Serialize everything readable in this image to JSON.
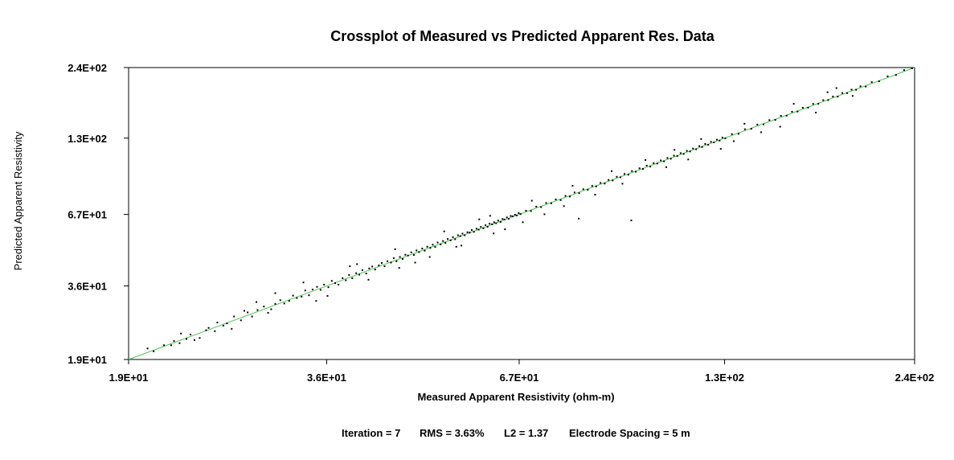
{
  "chart_data": {
    "type": "scatter",
    "title": "Crossplot of Measured vs Predicted Apparent Res. Data",
    "xlabel": "Measured Apparent Resistivity (ohm-m)",
    "ylabel": "Predicted Apparent Resistivity",
    "x_scale": "log",
    "y_scale": "log",
    "xlim": [
      19,
      240
    ],
    "ylim": [
      19,
      240
    ],
    "x_ticks": [
      "1.9E+01",
      "3.6E+01",
      "6.7E+01",
      "1.3E+02",
      "2.4E+02"
    ],
    "y_ticks": [
      "2.4E+02",
      "1.3E+02",
      "6.7E+01",
      "3.6E+01",
      "1.9E+01"
    ],
    "tick_values": [
      19,
      36,
      67,
      130,
      240
    ],
    "reference_line": {
      "from": [
        19,
        19
      ],
      "to": [
        240,
        240
      ],
      "color": "#4cc44c"
    },
    "point_color": "#000000",
    "grid": false,
    "series": [
      {
        "values": [
          [
            20.2,
            20.9
          ],
          [
            20.6,
            20.4
          ],
          [
            21.3,
            21.5
          ],
          [
            21.8,
            21.5
          ],
          [
            22.0,
            22.3
          ],
          [
            22.4,
            21.9
          ],
          [
            22.9,
            22.7
          ],
          [
            23.2,
            23.6
          ],
          [
            23.5,
            22.5
          ],
          [
            24.4,
            24.5
          ],
          [
            24.6,
            25.0
          ],
          [
            25.1,
            24.3
          ],
          [
            25.3,
            26.2
          ],
          [
            26.1,
            26.0
          ],
          [
            26.7,
            27.6
          ],
          [
            27.3,
            26.7
          ],
          [
            27.9,
            28.6
          ],
          [
            28.3,
            27.6
          ],
          [
            28.8,
            29.2
          ],
          [
            29.4,
            30.1
          ],
          [
            30.1,
            29.4
          ],
          [
            30.5,
            30.8
          ],
          [
            31.0,
            31.8
          ],
          [
            31.4,
            30.9
          ],
          [
            31.9,
            31.6
          ],
          [
            32.3,
            33.1
          ],
          [
            32.7,
            32.4
          ],
          [
            33.2,
            32.8
          ],
          [
            33.6,
            34.6
          ],
          [
            34.0,
            33.2
          ],
          [
            34.4,
            34.9
          ],
          [
            34.9,
            35.7
          ],
          [
            35.3,
            34.8
          ],
          [
            35.7,
            36.4
          ],
          [
            36.2,
            35.6
          ],
          [
            36.6,
            37.6
          ],
          [
            37.0,
            36.9
          ],
          [
            37.4,
            36.4
          ],
          [
            37.9,
            38.5
          ],
          [
            38.3,
            37.8
          ],
          [
            38.7,
            39.6
          ],
          [
            39.1,
            38.5
          ],
          [
            39.6,
            40.2
          ],
          [
            40.0,
            39.7
          ],
          [
            40.4,
            41.3
          ],
          [
            40.9,
            40.1
          ],
          [
            41.3,
            41.9
          ],
          [
            41.7,
            42.6
          ],
          [
            42.1,
            41.5
          ],
          [
            42.6,
            43.0
          ],
          [
            43.0,
            43.9
          ],
          [
            43.4,
            42.7
          ],
          [
            43.8,
            44.6
          ],
          [
            44.3,
            44.1
          ],
          [
            44.7,
            45.8
          ],
          [
            45.1,
            44.6
          ],
          [
            45.6,
            46.3
          ],
          [
            46.0,
            45.5
          ],
          [
            46.4,
            47.2
          ],
          [
            46.8,
            46.9
          ],
          [
            47.3,
            48.2
          ],
          [
            47.7,
            47.1
          ],
          [
            48.1,
            49.0
          ],
          [
            48.5,
            48.3
          ],
          [
            49.0,
            49.8
          ],
          [
            49.4,
            48.9
          ],
          [
            49.8,
            50.6
          ],
          [
            50.3,
            50.1
          ],
          [
            50.7,
            51.5
          ],
          [
            51.1,
            50.5
          ],
          [
            51.5,
            52.5
          ],
          [
            52.0,
            51.6
          ],
          [
            52.4,
            53.2
          ],
          [
            52.8,
            52.3
          ],
          [
            53.2,
            54.1
          ],
          [
            53.7,
            53.5
          ],
          [
            54.1,
            55.0
          ],
          [
            54.5,
            54.0
          ],
          [
            55.0,
            55.9
          ],
          [
            55.4,
            55.5
          ],
          [
            55.8,
            56.7
          ],
          [
            56.2,
            55.9
          ],
          [
            56.7,
            57.4
          ],
          [
            57.1,
            57.2
          ],
          [
            57.5,
            58.5
          ],
          [
            57.9,
            57.6
          ],
          [
            58.4,
            59.2
          ],
          [
            58.8,
            58.7
          ],
          [
            59.2,
            60.1
          ],
          [
            59.7,
            59.4
          ],
          [
            60.1,
            61.0
          ],
          [
            60.5,
            60.2
          ],
          [
            60.9,
            61.8
          ],
          [
            61.4,
            61.5
          ],
          [
            61.8,
            62.6
          ],
          [
            62.2,
            62.1
          ],
          [
            62.6,
            63.5
          ],
          [
            63.1,
            62.8
          ],
          [
            63.5,
            64.4
          ],
          [
            63.9,
            64.1
          ],
          [
            64.4,
            65.3
          ],
          [
            64.8,
            64.5
          ],
          [
            65.2,
            66.1
          ],
          [
            65.6,
            65.9
          ],
          [
            66.1,
            66.8
          ],
          [
            66.5,
            66.4
          ],
          [
            66.9,
            67.8
          ],
          [
            67.3,
            67.2
          ],
          [
            68.5,
            69.2
          ],
          [
            69.6,
            69.0
          ],
          [
            70.8,
            71.7
          ],
          [
            71.9,
            71.4
          ],
          [
            73.1,
            74.0
          ],
          [
            74.3,
            73.8
          ],
          [
            75.4,
            76.3
          ],
          [
            76.6,
            75.9
          ],
          [
            77.8,
            78.7
          ],
          [
            78.9,
            78.3
          ],
          [
            80.1,
            81.1
          ],
          [
            81.3,
            80.6
          ],
          [
            82.4,
            83.4
          ],
          [
            83.6,
            83.0
          ],
          [
            84.8,
            85.8
          ],
          [
            85.9,
            85.5
          ],
          [
            87.1,
            88.1
          ],
          [
            88.3,
            87.6
          ],
          [
            89.4,
            90.4
          ],
          [
            90.6,
            90.0
          ],
          [
            91.8,
            92.9
          ],
          [
            92.9,
            92.5
          ],
          [
            94.1,
            95.2
          ],
          [
            95.3,
            94.6
          ],
          [
            96.4,
            97.6
          ],
          [
            97.6,
            97.1
          ],
          [
            98.8,
            100.0
          ],
          [
            99.9,
            99.5
          ],
          [
            101.1,
            102.4
          ],
          [
            102.3,
            101.5
          ],
          [
            103.4,
            104.6
          ],
          [
            104.6,
            104.3
          ],
          [
            105.8,
            107.1
          ],
          [
            106.9,
            106.3
          ],
          [
            108.1,
            109.4
          ],
          [
            109.3,
            108.7
          ],
          [
            110.4,
            111.7
          ],
          [
            111.6,
            111.3
          ],
          [
            112.8,
            114.1
          ],
          [
            113.9,
            113.3
          ],
          [
            115.1,
            116.4
          ],
          [
            116.3,
            115.8
          ],
          [
            117.4,
            118.8
          ],
          [
            118.6,
            118.0
          ],
          [
            119.8,
            121.3
          ],
          [
            120.9,
            120.4
          ],
          [
            122.1,
            123.6
          ],
          [
            123.3,
            122.7
          ],
          [
            124.4,
            125.9
          ],
          [
            125.6,
            125.3
          ],
          [
            126.8,
            128.3
          ],
          [
            127.9,
            127.2
          ],
          [
            129.1,
            130.6
          ],
          [
            130.3,
            129.8
          ],
          [
            133.1,
            134.6
          ],
          [
            136.0,
            135.0
          ],
          [
            138.8,
            140.4
          ],
          [
            141.7,
            141.0
          ],
          [
            144.5,
            146.2
          ],
          [
            147.4,
            146.5
          ],
          [
            150.2,
            152.0
          ],
          [
            153.1,
            152.3
          ],
          [
            155.9,
            157.8
          ],
          [
            158.8,
            158.0
          ],
          [
            161.6,
            163.5
          ],
          [
            164.5,
            163.8
          ],
          [
            167.3,
            169.3
          ],
          [
            170.2,
            169.4
          ],
          [
            173.0,
            175.0
          ],
          [
            175.9,
            175.3
          ],
          [
            178.7,
            180.8
          ],
          [
            181.6,
            180.9
          ],
          [
            184.4,
            186.6
          ],
          [
            187.3,
            186.4
          ],
          [
            190.1,
            192.4
          ],
          [
            193.0,
            192.2
          ],
          [
            195.8,
            198.1
          ],
          [
            198.7,
            197.8
          ],
          [
            201.5,
            203.9
          ],
          [
            205.0,
            203.5
          ],
          [
            209.0,
            211.5
          ],
          [
            214.0,
            213.0
          ],
          [
            220.0,
            222.5
          ],
          [
            226.0,
            225.0
          ],
          [
            232.0,
            234.7
          ],
          [
            238.0,
            238.5
          ],
          [
            30.5,
            33.8
          ],
          [
            33.4,
            37.1
          ],
          [
            36.1,
            33.0
          ],
          [
            38.8,
            42.7
          ],
          [
            41.2,
            38.0
          ],
          [
            44.9,
            49.5
          ],
          [
            47.9,
            44.1
          ],
          [
            50.2,
            46.3
          ],
          [
            52.6,
            57.8
          ],
          [
            55.6,
            51.1
          ],
          [
            58.9,
            64.2
          ],
          [
            61.7,
            56.8
          ],
          [
            64.0,
            58.9
          ],
          [
            69.8,
            75.5
          ],
          [
            72.7,
            67.1
          ],
          [
            77.4,
            72.0
          ],
          [
            81.2,
            64.6
          ],
          [
            85.6,
            79.5
          ],
          [
            90.3,
            97.6
          ],
          [
            96.2,
            63.6
          ],
          [
            100.7,
            107.5
          ],
          [
            107.7,
            101.0
          ],
          [
            115.6,
            108.0
          ],
          [
            120.5,
            129.0
          ],
          [
            128.4,
            118.4
          ],
          [
            138.6,
            147.3
          ],
          [
            146.3,
            136.8
          ],
          [
            162.5,
            175.1
          ],
          [
            174.5,
            162.3
          ],
          [
            186.5,
            200.8
          ],
          [
            196.5,
            187.6
          ],
          [
            26.5,
            24.8
          ],
          [
            28.7,
            31.3
          ],
          [
            34.8,
            31.6
          ],
          [
            39.7,
            43.5
          ],
          [
            45.5,
            42.1
          ],
          [
            54.7,
            50.6
          ],
          [
            61.0,
            66.2
          ],
          [
            67.8,
            62.6
          ],
          [
            79.6,
            85.9
          ],
          [
            93.5,
            87.5
          ],
          [
            110.6,
            117.4
          ],
          [
            133.9,
            126.6
          ],
          [
            155.5,
            143.6
          ],
          [
            181.2,
            193.7
          ],
          [
            22.5,
            23.8
          ],
          [
            23.9,
            22.9
          ],
          [
            25.8,
            25.5
          ],
          [
            27.6,
            29.0
          ],
          [
            29.8,
            28.5
          ]
        ]
      }
    ]
  },
  "footer": {
    "iteration": "Iteration = 7",
    "rms": "RMS = 3.63%",
    "l2": "L2 = 1.37",
    "spacing": "Electrode Spacing = 5 m"
  }
}
